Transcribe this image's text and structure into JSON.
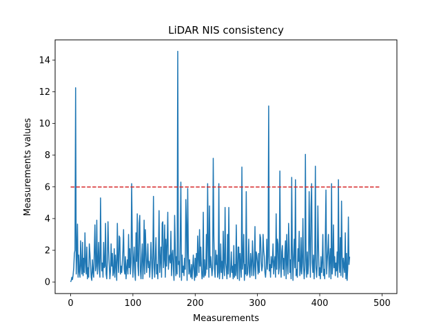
{
  "chart_data": {
    "type": "line",
    "title": "LiDAR NIS consistency",
    "xlabel": "Measurements",
    "ylabel": "Measurements values",
    "xlim": [
      -24.9,
      523.9
    ],
    "ylim": [
      -0.73,
      15.27
    ],
    "xticks": [
      0,
      100,
      200,
      300,
      400,
      500
    ],
    "xtick_labels": [
      "0",
      "100",
      "200",
      "300",
      "400",
      "500"
    ],
    "yticks": [
      0,
      2,
      4,
      6,
      8,
      10,
      12,
      14
    ],
    "ytick_labels": [
      "0",
      "2",
      "4",
      "6",
      "8",
      "10",
      "12",
      "14"
    ],
    "grid": false,
    "legend": "none",
    "colors": {
      "series": "#1f77b4",
      "threshold": "#d62728"
    },
    "threshold": {
      "x": [
        0,
        498
      ],
      "y": 5.991,
      "style": "dashed"
    },
    "series": [
      {
        "x_start": 0,
        "values": [
          0.0,
          0.1,
          0.3,
          0.15,
          0.45,
          0.9,
          1.8,
          2.0,
          12.25,
          0.5,
          1.8,
          3.65,
          0.3,
          1.7,
          0.6,
          0.3,
          2.6,
          1.0,
          0.5,
          2.5,
          0.4,
          1.5,
          0.6,
          3.1,
          1.2,
          0.5,
          2.2,
          0.2,
          0.9,
          0.3,
          2.4,
          1.8,
          1.0,
          0.3,
          0.1,
          1.4,
          0.6,
          0.3,
          2.0,
          3.6,
          0.7,
          1.0,
          3.9,
          0.5,
          1.2,
          2.5,
          0.8,
          0.3,
          5.3,
          1.5,
          0.7,
          1.2,
          0.3,
          2.5,
          0.9,
          1.0,
          3.7,
          0.5,
          0.2,
          1.4,
          3.8,
          2.0,
          1.1,
          0.2,
          0.7,
          2.4,
          1.0,
          1.8,
          0.4,
          0.6,
          2.1,
          0.3,
          1.7,
          1.0,
          0.1,
          3.7,
          1.4,
          0.6,
          2.9,
          2.8,
          0.5,
          1.0,
          0.6,
          1.2,
          2.0,
          3.3,
          0.8,
          0.5,
          1.6,
          0.2,
          0.9,
          1.4,
          0.5,
          3.0,
          0.9,
          2.1,
          0.5,
          1.2,
          6.2,
          2.8,
          0.3,
          1.4,
          2.2,
          0.6,
          0.1,
          3.1,
          1.3,
          4.3,
          1.0,
          0.4,
          3.7,
          4.2,
          0.7,
          0.2,
          1.5,
          2.4,
          0.2,
          1.1,
          3.9,
          0.5,
          3.3,
          1.9,
          0.6,
          1.2,
          2.4,
          0.9,
          1.3,
          0.3,
          1.2,
          2.5,
          1.4,
          0.2,
          1.5,
          5.4,
          0.9,
          0.3,
          1.6,
          2.8,
          0.5,
          1.1,
          0.2,
          1.8,
          4.5,
          0.6,
          1.3,
          2.2,
          0.3,
          3.7,
          3.8,
          0.9,
          1.4,
          3.6,
          0.3,
          2.7,
          1.0,
          2.4,
          4.4,
          0.8,
          1.5,
          1.7,
          1.2,
          3.2,
          0.4,
          1.7,
          2.0,
          0.8,
          0.1,
          4.2,
          2.2,
          0.4,
          1.6,
          0.5,
          14.55,
          1.1,
          1.3,
          0.3,
          2.8,
          6.3,
          0.1,
          1.7,
          0.6,
          1.0,
          0.4,
          1.5,
          0.8,
          5.2,
          3.5,
          0.1,
          5.9,
          1.8,
          0.5,
          1.4,
          0.6,
          0.3,
          1.1,
          0.2,
          0.9,
          1.7,
          0.8,
          0.1,
          1.5,
          0.3,
          1.8,
          0.4,
          2.9,
          1.5,
          0.6,
          3.3,
          1.0,
          2.2,
          0.9,
          0.2,
          0.4,
          4.4,
          0.3,
          1.4,
          0.4,
          0.6,
          3.0,
          0.8,
          6.2,
          2.4,
          0.3,
          4.8,
          0.9,
          1.6,
          1.0,
          0.4,
          0.9,
          7.8,
          2.9,
          0.8,
          0.3,
          2.0,
          1.1,
          1.7,
          0.3,
          0.6,
          6.2,
          0.2,
          0.8,
          2.4,
          0.6,
          1.3,
          0.2,
          3.2,
          0.9,
          0.4,
          4.7,
          1.2,
          0.8,
          0.2,
          3.0,
          0.5,
          4.7,
          1.0,
          0.3,
          0.8,
          1.9,
          0.6,
          1.0,
          0.2,
          2.3,
          0.3,
          1.1,
          0.4,
          3.6,
          0.7,
          0.2,
          2.2,
          2.2,
          0.1,
          1.8,
          1.0,
          0.3,
          7.25,
          0.8,
          1.3,
          3.0,
          0.1,
          1.1,
          0.5,
          5.7,
          0.4,
          0.5,
          1.1,
          2.7,
          0.6,
          0.3,
          1.8,
          1.2,
          0.4,
          2.6,
          1.4,
          0.4,
          1.0,
          3.5,
          0.2,
          1.9,
          1.7,
          1.2,
          0.5,
          1.8,
          0.6,
          3.0,
          2.8,
          1.3,
          0.7,
          1.0,
          3.0,
          2.0,
          1.6,
          0.6,
          0.3,
          1.0,
          2.7,
          0.8,
          1.6,
          11.1,
          0.7,
          1.1,
          0.3,
          1.6,
          0.9,
          1.3,
          2.4,
          0.5,
          1.2,
          1.6,
          0.3,
          4.3,
          0.8,
          2.7,
          2.4,
          0.5,
          0.9,
          7.0,
          1.2,
          0.3,
          1.9,
          2.3,
          0.8,
          1.5,
          0.4,
          1.8,
          2.6,
          0.2,
          3.0,
          1.1,
          0.5,
          3.7,
          2.2,
          0.6,
          1.4,
          0.2,
          6.6,
          1.9,
          0.1,
          1.6,
          2.7,
          0.9,
          6.45,
          0.4,
          0.8,
          0.3,
          2.1,
          1.3,
          3.2,
          0.4,
          0.7,
          2.8,
          0.5,
          1.2,
          4.0,
          1.0,
          0.2,
          0.8,
          8.05,
          1.4,
          0.3,
          1.9,
          0.5,
          1.1,
          5.7,
          2.4,
          0.3,
          4.7,
          6.2,
          1.2,
          0.6,
          1.7,
          0.2,
          1.5,
          7.3,
          0.9,
          0.3,
          1.1,
          4.8,
          2.2,
          0.4,
          0.9,
          0.2,
          1.6,
          0.6,
          1.2,
          3.0,
          0.4,
          0.8,
          0.2,
          2.8,
          5.8,
          0.5,
          1.3,
          2.0,
          3.0,
          0.3,
          1.4,
          2.1,
          0.2,
          6.2,
          0.5,
          1.0,
          3.6,
          0.9,
          1.6,
          0.4,
          1.2,
          0.7,
          1.9,
          0.3,
          6.45,
          1.2,
          0.6,
          2.8,
          0.4,
          5.1,
          1.6,
          0.3,
          1.5,
          1.0,
          0.6,
          3.1,
          0.2,
          1.8,
          0.1,
          0.9,
          4.1,
          1.1,
          1.6
        ]
      }
    ]
  }
}
